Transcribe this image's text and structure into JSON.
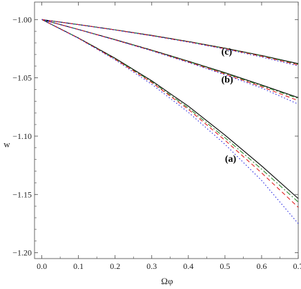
{
  "chart_data": {
    "type": "line",
    "xlabel": "Ωφ",
    "ylabel": "w",
    "xlim": [
      -0.02,
      0.7
    ],
    "ylim": [
      -1.205,
      -0.985
    ],
    "xticks": [
      0.0,
      0.1,
      0.2,
      0.3,
      0.4,
      0.5,
      0.6,
      0.7
    ],
    "xtick_labels": [
      "0.0",
      "0.1",
      "0.2",
      "0.3",
      "0.4",
      "0.5",
      "0.6",
      "0.7"
    ],
    "yticks": [
      -1.0,
      -1.05,
      -1.1,
      -1.15,
      -1.2
    ],
    "ytick_labels": [
      "−1.00",
      "−1.05",
      "−1.10",
      "−1.15",
      "−1.20"
    ],
    "grid": false,
    "annotations": [
      {
        "text": "(a)",
        "x": 0.5,
        "y": -1.119
      },
      {
        "text": "(b)",
        "x": 0.49,
        "y": -1.051
      },
      {
        "text": "(c)",
        "x": 0.49,
        "y": -1.027
      }
    ],
    "groups": [
      {
        "label": "(a)",
        "x": [
          0.0,
          0.1,
          0.2,
          0.3,
          0.4,
          0.5,
          0.6,
          0.7
        ],
        "series": [
          {
            "style": "solid",
            "color": "#000000",
            "values": [
              -1.0,
              -1.0158,
              -1.0332,
              -1.0525,
              -1.0743,
              -1.0991,
              -1.1255,
              -1.1535
            ]
          },
          {
            "style": "dashdot",
            "color": "#2e8b2e",
            "values": [
              -1.0,
              -1.0159,
              -1.0336,
              -1.0533,
              -1.0758,
              -1.1013,
              -1.1283,
              -1.1565
            ]
          },
          {
            "style": "dashed",
            "color": "#e02020",
            "values": [
              -1.0,
              -1.016,
              -1.034,
              -1.054,
              -1.077,
              -1.1035,
              -1.1315,
              -1.161
            ]
          },
          {
            "style": "dotted",
            "color": "#2020e0",
            "values": [
              -1.0,
              -1.0161,
              -1.0345,
              -1.0555,
              -1.0795,
              -1.107,
              -1.138,
              -1.175
            ]
          }
        ]
      },
      {
        "label": "(b)",
        "x": [
          0.0,
          0.1,
          0.2,
          0.3,
          0.4,
          0.5,
          0.6,
          0.7
        ],
        "series": [
          {
            "style": "solid",
            "color": "#000000",
            "values": [
              -1.0,
              -1.0085,
              -1.0172,
              -1.0262,
              -1.0357,
              -1.0456,
              -1.0561,
              -1.0669
            ]
          },
          {
            "style": "dashdot",
            "color": "#2e8b2e",
            "values": [
              -1.0,
              -1.0085,
              -1.0173,
              -1.0264,
              -1.036,
              -1.0461,
              -1.0567,
              -1.0677
            ]
          },
          {
            "style": "dashed",
            "color": "#e02020",
            "values": [
              -1.0,
              -1.0085,
              -1.0174,
              -1.0266,
              -1.0364,
              -1.0467,
              -1.0576,
              -1.0695
            ]
          },
          {
            "style": "dotted",
            "color": "#2020e0",
            "values": [
              -1.0,
              -1.0086,
              -1.0175,
              -1.0268,
              -1.0368,
              -1.0474,
              -1.0587,
              -1.0725
            ]
          }
        ]
      },
      {
        "label": "(c)",
        "x": [
          0.0,
          0.1,
          0.2,
          0.3,
          0.4,
          0.5,
          0.6,
          0.7
        ],
        "series": [
          {
            "style": "solid",
            "color": "#000000",
            "values": [
              -1.0,
              -1.0043,
              -1.0088,
              -1.0136,
              -1.0188,
              -1.0245,
              -1.0308,
              -1.0378
            ]
          },
          {
            "style": "dashdot",
            "color": "#2e8b2e",
            "values": [
              -1.0,
              -1.0043,
              -1.0088,
              -1.0137,
              -1.0189,
              -1.0247,
              -1.0311,
              -1.0383
            ]
          },
          {
            "style": "dashed",
            "color": "#e02020",
            "values": [
              -1.0,
              -1.0043,
              -1.0089,
              -1.0138,
              -1.0191,
              -1.025,
              -1.0315,
              -1.0389
            ]
          },
          {
            "style": "dotted",
            "color": "#2020e0",
            "values": [
              -1.0,
              -1.0044,
              -1.009,
              -1.0139,
              -1.0193,
              -1.0253,
              -1.0321,
              -1.0397
            ]
          }
        ]
      }
    ]
  }
}
